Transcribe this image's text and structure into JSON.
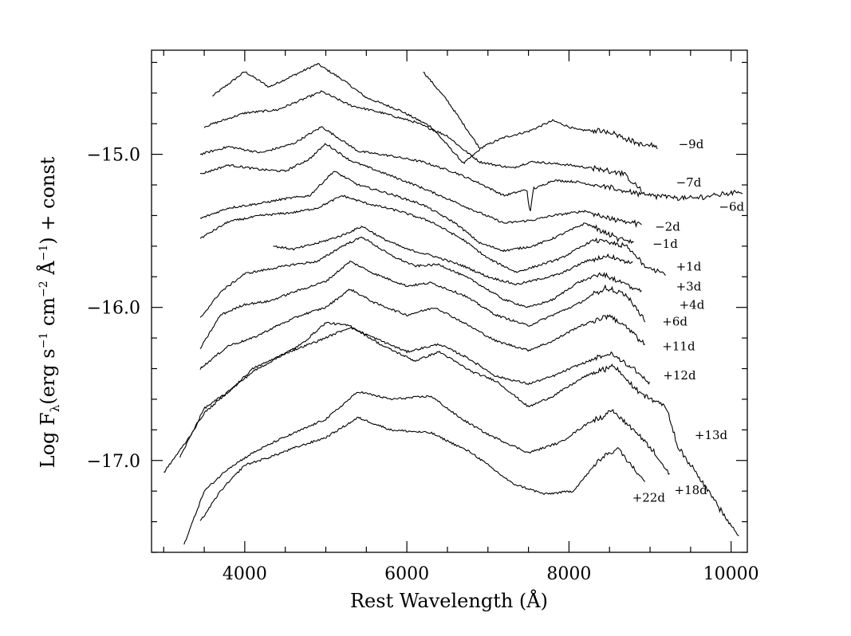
{
  "chart_data": {
    "type": "line",
    "title": "",
    "xlabel": "Rest Wavelength (Å)",
    "ylabel": {
      "prefix": "Log F",
      "sub": "λ",
      "middle": "(erg s",
      "sup1": "−1",
      "mid2": " cm",
      "sup2": "−2",
      "mid3": " Å",
      "sup3": "−1",
      "suffix": ") + const"
    },
    "xlim": [
      2850,
      10200
    ],
    "ylim": [
      -17.6,
      -14.32
    ],
    "x_ticks": [
      {
        "value": 4000,
        "label": "4000"
      },
      {
        "value": 6000,
        "label": "6000"
      },
      {
        "value": 8000,
        "label": "8000"
      },
      {
        "value": 10000,
        "label": "10000"
      }
    ],
    "y_ticks": [
      {
        "value": -15.0,
        "label": "−15.0"
      },
      {
        "value": -16.0,
        "label": "−16.0"
      },
      {
        "value": -17.0,
        "label": "−17.0"
      }
    ],
    "x_minor_step": 500,
    "y_minor_step": 0.2,
    "grid": false,
    "series": [
      {
        "name": "−9d",
        "label_at": [
          9350,
          -14.96
        ],
        "points": [
          [
            3600,
            -14.62
          ],
          [
            4000,
            -14.46
          ],
          [
            4300,
            -14.56
          ],
          [
            4900,
            -14.41
          ],
          [
            5200,
            -14.51
          ],
          [
            5500,
            -14.63
          ],
          [
            5900,
            -14.71
          ],
          [
            6300,
            -14.82
          ],
          [
            6700,
            -15.06
          ],
          [
            6940,
            -14.95
          ],
          [
            7200,
            -14.89
          ],
          [
            7500,
            -14.85
          ],
          [
            7800,
            -14.78
          ],
          [
            8100,
            -14.84
          ],
          [
            8500,
            -14.85
          ],
          [
            8900,
            -14.94
          ],
          [
            9100,
            -14.95
          ]
        ],
        "points_b": [
          [
            6200,
            -14.46
          ],
          [
            6500,
            -14.65
          ],
          [
            6900,
            -14.96
          ]
        ]
      },
      {
        "name": "−7d",
        "label_at": [
          9320,
          -15.21
        ],
        "points": [
          [
            3500,
            -14.82
          ],
          [
            4000,
            -14.73
          ],
          [
            4400,
            -14.71
          ],
          [
            4950,
            -14.59
          ],
          [
            5300,
            -14.68
          ],
          [
            5700,
            -14.73
          ],
          [
            6100,
            -14.79
          ],
          [
            6500,
            -14.88
          ],
          [
            6700,
            -14.97
          ],
          [
            6900,
            -15.05
          ],
          [
            7300,
            -15.09
          ],
          [
            7520,
            -15.05
          ],
          [
            7600,
            -15.05
          ],
          [
            8000,
            -15.07
          ],
          [
            8400,
            -15.1
          ],
          [
            8650,
            -15.12
          ],
          [
            8900,
            -15.24
          ]
        ]
      },
      {
        "name": "−6d",
        "label_at": [
          9850,
          -15.37
        ],
        "points": [
          [
            3450,
            -15.0
          ],
          [
            3800,
            -14.95
          ],
          [
            4200,
            -14.99
          ],
          [
            4600,
            -14.93
          ],
          [
            4950,
            -14.82
          ],
          [
            5400,
            -14.98
          ],
          [
            5800,
            -15.01
          ],
          [
            6200,
            -15.05
          ],
          [
            6600,
            -15.12
          ],
          [
            6900,
            -15.19
          ],
          [
            7200,
            -15.27
          ],
          [
            7550,
            -15.22
          ],
          [
            7600,
            -15.22
          ],
          [
            7800,
            -15.17
          ],
          [
            8100,
            -15.18
          ],
          [
            8600,
            -15.23
          ],
          [
            9000,
            -15.27
          ],
          [
            9500,
            -15.29
          ],
          [
            10150,
            -15.24
          ]
        ],
        "dip": {
          "at": 7520,
          "depth": 0.17
        }
      },
      {
        "name": "−2d",
        "label_at": [
          9060,
          -15.5
        ],
        "points": [
          [
            3450,
            -15.13
          ],
          [
            3800,
            -15.07
          ],
          [
            4200,
            -15.1
          ],
          [
            4500,
            -15.11
          ],
          [
            4800,
            -15.03
          ],
          [
            5000,
            -14.93
          ],
          [
            5300,
            -15.04
          ],
          [
            5700,
            -15.12
          ],
          [
            6100,
            -15.2
          ],
          [
            6500,
            -15.29
          ],
          [
            6800,
            -15.36
          ],
          [
            7200,
            -15.45
          ],
          [
            7550,
            -15.43
          ],
          [
            7800,
            -15.4
          ],
          [
            8200,
            -15.37
          ],
          [
            8500,
            -15.42
          ],
          [
            8900,
            -15.46
          ]
        ]
      },
      {
        "name": "−1d",
        "label_at": [
          9030,
          -15.61
        ],
        "points": [
          [
            3450,
            -15.42
          ],
          [
            3800,
            -15.35
          ],
          [
            4200,
            -15.32
          ],
          [
            4500,
            -15.29
          ],
          [
            4800,
            -15.27
          ],
          [
            5100,
            -15.11
          ],
          [
            5400,
            -15.2
          ],
          [
            5800,
            -15.26
          ],
          [
            6200,
            -15.33
          ],
          [
            6600,
            -15.45
          ],
          [
            6900,
            -15.58
          ],
          [
            7200,
            -15.63
          ],
          [
            7550,
            -15.6
          ],
          [
            7800,
            -15.55
          ],
          [
            8200,
            -15.45
          ],
          [
            8600,
            -15.55
          ],
          [
            8800,
            -15.57
          ]
        ]
      },
      {
        "name": "+1d",
        "label_at": [
          9320,
          -15.76
        ],
        "points": [
          [
            3450,
            -15.55
          ],
          [
            3800,
            -15.44
          ],
          [
            4200,
            -15.4
          ],
          [
            4600,
            -15.38
          ],
          [
            4900,
            -15.35
          ],
          [
            5200,
            -15.27
          ],
          [
            5500,
            -15.32
          ],
          [
            5900,
            -15.37
          ],
          [
            6300,
            -15.44
          ],
          [
            6700,
            -15.56
          ],
          [
            7000,
            -15.68
          ],
          [
            7350,
            -15.77
          ],
          [
            7600,
            -15.73
          ],
          [
            7900,
            -15.68
          ],
          [
            8300,
            -15.56
          ],
          [
            8700,
            -15.6
          ],
          [
            8950,
            -15.73
          ],
          [
            9200,
            -15.78
          ]
        ]
      },
      {
        "name": "+3d",
        "label_at": [
          9320,
          -15.89
        ],
        "points": [
          [
            4350,
            -15.6
          ],
          [
            4600,
            -15.62
          ],
          [
            4900,
            -15.58
          ],
          [
            5200,
            -15.53
          ],
          [
            5450,
            -15.47
          ],
          [
            5700,
            -15.55
          ],
          [
            6000,
            -15.62
          ],
          [
            6300,
            -15.66
          ],
          [
            6700,
            -15.73
          ],
          [
            7000,
            -15.8
          ],
          [
            7350,
            -15.85
          ],
          [
            7600,
            -15.82
          ],
          [
            7900,
            -15.78
          ],
          [
            8200,
            -15.7
          ],
          [
            8500,
            -15.66
          ],
          [
            8800,
            -15.72
          ]
        ]
      },
      {
        "name": "+4d",
        "label_at": [
          9360,
          -16.01
        ],
        "points": [
          [
            3450,
            -16.07
          ],
          [
            3700,
            -15.9
          ],
          [
            4000,
            -15.78
          ],
          [
            4300,
            -15.75
          ],
          [
            4600,
            -15.72
          ],
          [
            4900,
            -15.7
          ],
          [
            5200,
            -15.6
          ],
          [
            5450,
            -15.54
          ],
          [
            5800,
            -15.66
          ],
          [
            6100,
            -15.73
          ],
          [
            6400,
            -15.72
          ],
          [
            6800,
            -15.82
          ],
          [
            7200,
            -15.95
          ],
          [
            7500,
            -16.0
          ],
          [
            7800,
            -15.95
          ],
          [
            8100,
            -15.84
          ],
          [
            8400,
            -15.78
          ],
          [
            8700,
            -15.85
          ],
          [
            8900,
            -15.9
          ]
        ]
      },
      {
        "name": "+6d",
        "label_at": [
          9150,
          -16.12
        ],
        "points": [
          [
            3450,
            -16.27
          ],
          [
            3700,
            -16.05
          ],
          [
            4000,
            -15.98
          ],
          [
            4300,
            -15.96
          ],
          [
            4600,
            -15.9
          ],
          [
            5000,
            -15.83
          ],
          [
            5300,
            -15.7
          ],
          [
            5600,
            -15.78
          ],
          [
            6000,
            -15.86
          ],
          [
            6300,
            -15.84
          ],
          [
            6700,
            -15.92
          ],
          [
            7100,
            -16.05
          ],
          [
            7500,
            -16.12
          ],
          [
            7800,
            -16.05
          ],
          [
            8100,
            -15.98
          ],
          [
            8450,
            -15.87
          ],
          [
            8700,
            -15.92
          ],
          [
            8950,
            -16.09
          ]
        ]
      },
      {
        "name": "+11d",
        "label_at": [
          9150,
          -16.28
        ],
        "points": [
          [
            3450,
            -16.4
          ],
          [
            3800,
            -16.25
          ],
          [
            4100,
            -16.2
          ],
          [
            4400,
            -16.12
          ],
          [
            4700,
            -16.05
          ],
          [
            5000,
            -16.0
          ],
          [
            5300,
            -15.88
          ],
          [
            5600,
            -15.97
          ],
          [
            6000,
            -16.05
          ],
          [
            6350,
            -16.0
          ],
          [
            6700,
            -16.1
          ],
          [
            7100,
            -16.22
          ],
          [
            7500,
            -16.28
          ],
          [
            7800,
            -16.22
          ],
          [
            8100,
            -16.13
          ],
          [
            8500,
            -16.05
          ],
          [
            8750,
            -16.15
          ],
          [
            8950,
            -16.25
          ]
        ]
      },
      {
        "name": "+12d",
        "label_at": [
          9160,
          -16.47
        ],
        "points": [
          [
            3200,
            -16.98
          ],
          [
            3500,
            -16.66
          ],
          [
            3800,
            -16.55
          ],
          [
            4100,
            -16.4
          ],
          [
            4500,
            -16.3
          ],
          [
            4900,
            -16.22
          ],
          [
            5300,
            -16.13
          ],
          [
            5600,
            -16.2
          ],
          [
            6000,
            -16.29
          ],
          [
            6400,
            -16.24
          ],
          [
            6750,
            -16.33
          ],
          [
            7100,
            -16.45
          ],
          [
            7500,
            -16.5
          ],
          [
            7800,
            -16.45
          ],
          [
            8100,
            -16.38
          ],
          [
            8500,
            -16.3
          ],
          [
            8800,
            -16.4
          ],
          [
            9000,
            -16.5
          ]
        ]
      },
      {
        "name": "+13d",
        "label_at": [
          9550,
          -16.86
        ],
        "points": [
          [
            3000,
            -17.08
          ],
          [
            3300,
            -16.86
          ],
          [
            3500,
            -16.69
          ],
          [
            3800,
            -16.55
          ],
          [
            4100,
            -16.42
          ],
          [
            4400,
            -16.33
          ],
          [
            4700,
            -16.24
          ],
          [
            5000,
            -16.1
          ],
          [
            5300,
            -16.12
          ],
          [
            5700,
            -16.25
          ],
          [
            6100,
            -16.35
          ],
          [
            6400,
            -16.29
          ],
          [
            6800,
            -16.42
          ],
          [
            7100,
            -16.48
          ],
          [
            7500,
            -16.65
          ],
          [
            7800,
            -16.58
          ],
          [
            8200,
            -16.45
          ],
          [
            8550,
            -16.38
          ],
          [
            8850,
            -16.55
          ],
          [
            9200,
            -16.65
          ],
          [
            9350,
            -16.92
          ],
          [
            9600,
            -17.1
          ],
          [
            9900,
            -17.35
          ],
          [
            10100,
            -17.5
          ]
        ]
      },
      {
        "name": "+18d",
        "label_at": [
          9300,
          -17.22
        ],
        "points": [
          [
            3250,
            -17.55
          ],
          [
            3500,
            -17.2
          ],
          [
            3800,
            -17.05
          ],
          [
            4100,
            -16.95
          ],
          [
            4400,
            -16.87
          ],
          [
            4700,
            -16.8
          ],
          [
            5000,
            -16.73
          ],
          [
            5400,
            -16.55
          ],
          [
            5800,
            -16.6
          ],
          [
            6300,
            -16.58
          ],
          [
            6650,
            -16.72
          ],
          [
            7000,
            -16.83
          ],
          [
            7500,
            -16.95
          ],
          [
            7900,
            -16.88
          ],
          [
            8250,
            -16.75
          ],
          [
            8550,
            -16.68
          ],
          [
            8900,
            -16.85
          ],
          [
            9100,
            -16.98
          ],
          [
            9250,
            -17.1
          ]
        ]
      },
      {
        "name": "+22d",
        "label_at": [
          8780,
          -17.27
        ],
        "points": [
          [
            3450,
            -17.4
          ],
          [
            3700,
            -17.2
          ],
          [
            4000,
            -17.03
          ],
          [
            4300,
            -16.98
          ],
          [
            4600,
            -16.92
          ],
          [
            5000,
            -16.85
          ],
          [
            5400,
            -16.72
          ],
          [
            5800,
            -16.8
          ],
          [
            6300,
            -16.82
          ],
          [
            6800,
            -16.95
          ],
          [
            7300,
            -17.15
          ],
          [
            7700,
            -17.22
          ],
          [
            8050,
            -17.2
          ],
          [
            8400,
            -16.98
          ],
          [
            8600,
            -16.92
          ],
          [
            8800,
            -17.05
          ],
          [
            8950,
            -17.13
          ]
        ]
      }
    ]
  }
}
